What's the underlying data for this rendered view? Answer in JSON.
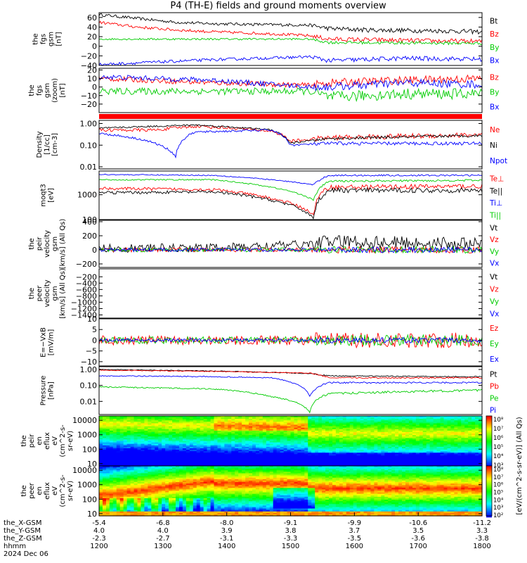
{
  "title": "P4 (TH-E) fields and ground moments overview",
  "x_axis": {
    "rows": [
      {
        "name": "the_X-GSM",
        "values": [
          "-5.4",
          "-6.8",
          "-8.0",
          "-9.1",
          "-9.9",
          "-10.6",
          "-11.2"
        ]
      },
      {
        "name": "the_Y-GSM",
        "values": [
          "4.0",
          "4.0",
          "3.9",
          "3.8",
          "3.7",
          "3.5",
          "3.3"
        ]
      },
      {
        "name": "the_Z-GSM",
        "values": [
          "-2.3",
          "-2.7",
          "-3.1",
          "-3.3",
          "-3.5",
          "-3.6",
          "-3.8"
        ]
      },
      {
        "name": "hhmm",
        "values": [
          "1200",
          "1300",
          "1400",
          "1500",
          "1600",
          "1700",
          "1800"
        ]
      }
    ],
    "date": "2024 Dec 06"
  },
  "colors": {
    "black": "#000000",
    "red": "#ff0000",
    "green": "#00cc00",
    "blue": "#0000ff"
  },
  "chart_data": [
    {
      "type": "line",
      "ylabel": [
        "the",
        "fgs",
        "gsm",
        "[nT]"
      ],
      "ylim": [
        -40,
        70
      ],
      "yscale": "linear",
      "ticks": [
        {
          "v": 60,
          "t": "60"
        },
        {
          "v": 40,
          "t": "40"
        },
        {
          "v": 20,
          "t": "20"
        },
        {
          "v": 0,
          "t": "0"
        },
        {
          "v": -20,
          "t": "−20"
        },
        {
          "v": -40,
          "t": "−40"
        }
      ],
      "series": [
        {
          "name": "Bt",
          "color": "#000000",
          "pts": [
            [
              0,
              66
            ],
            [
              0.1,
              58
            ],
            [
              0.2,
              50
            ],
            [
              0.3,
              47
            ],
            [
              0.45,
              45
            ],
            [
              0.55,
              44
            ],
            [
              0.6,
              37
            ],
            [
              0.7,
              34
            ],
            [
              0.8,
              33
            ],
            [
              0.9,
              32
            ],
            [
              1,
              30
            ]
          ],
          "noise": 3
        },
        {
          "name": "Bz",
          "color": "#ff0000",
          "pts": [
            [
              0,
              50
            ],
            [
              0.1,
              40
            ],
            [
              0.2,
              34
            ],
            [
              0.3,
              30
            ],
            [
              0.45,
              26
            ],
            [
              0.55,
              22
            ],
            [
              0.6,
              15
            ],
            [
              0.8,
              12
            ],
            [
              1,
              10
            ]
          ],
          "noise": 3
        },
        {
          "name": "By",
          "color": "#00cc00",
          "pts": [
            [
              0,
              15
            ],
            [
              0.3,
              15
            ],
            [
              0.55,
              15
            ],
            [
              0.6,
              8
            ],
            [
              1,
              6
            ]
          ],
          "noise": 2
        },
        {
          "name": "Bx",
          "color": "#0000ff",
          "pts": [
            [
              0,
              -38
            ],
            [
              0.3,
              -28
            ],
            [
              0.55,
              -22
            ],
            [
              0.6,
              -30
            ],
            [
              0.8,
              -25
            ],
            [
              1,
              -27
            ]
          ],
          "noise": 3
        }
      ]
    },
    {
      "type": "line",
      "ylabel": [
        "the",
        "fgs",
        "gsm",
        "(zoom)",
        "[nT]"
      ],
      "ylim": [
        -30,
        22
      ],
      "yscale": "linear",
      "ticks": [
        {
          "v": 20,
          "t": "20"
        },
        {
          "v": 10,
          "t": "10"
        },
        {
          "v": 0,
          "t": "0"
        },
        {
          "v": -10,
          "t": "−10"
        },
        {
          "v": -20,
          "t": "−20"
        }
      ],
      "series": [
        {
          "name": "Bz",
          "color": "#ff0000",
          "pts": [
            [
              0,
              10
            ],
            [
              0.3,
              5
            ],
            [
              0.55,
              2
            ],
            [
              0.6,
              5
            ],
            [
              0.8,
              8
            ],
            [
              1,
              10
            ]
          ],
          "noise": 3
        },
        {
          "name": "By",
          "color": "#00cc00",
          "pts": [
            [
              0,
              -5
            ],
            [
              0.3,
              -5
            ],
            [
              0.55,
              -5
            ],
            [
              0.6,
              -12
            ],
            [
              0.8,
              -8
            ],
            [
              1,
              -8
            ]
          ],
          "noise": 4
        },
        {
          "name": "Bx",
          "color": "#0000ff",
          "pts": [
            [
              0,
              12
            ],
            [
              0.3,
              8
            ],
            [
              0.55,
              0
            ],
            [
              0.6,
              0
            ],
            [
              0.8,
              5
            ],
            [
              1,
              3
            ]
          ],
          "noise": 3
        }
      ]
    },
    {
      "type": "quality-bar",
      "series": [
        {
          "name": "flag",
          "color": "#ff0000"
        }
      ]
    },
    {
      "type": "line",
      "ylabel": [
        "Density",
        "[1/cc]",
        "[cm-3]"
      ],
      "ylim": [
        0.008,
        1.4
      ],
      "yscale": "log",
      "ticks": [
        {
          "v": 1,
          "t": "1.00"
        },
        {
          "v": 0.1,
          "t": "0.10"
        },
        {
          "v": 0.01,
          "t": "0.01"
        }
      ],
      "series": [
        {
          "name": "Ne",
          "color": "#ff0000",
          "pts": [
            [
              0,
              0.5
            ],
            [
              0.15,
              0.5
            ],
            [
              0.25,
              0.75
            ],
            [
              0.45,
              0.45
            ],
            [
              0.5,
              0.15
            ],
            [
              0.6,
              0.22
            ],
            [
              1,
              0.3
            ]
          ],
          "noise": 0.15,
          "log": true
        },
        {
          "name": "Ni",
          "color": "#000000",
          "pts": [
            [
              0,
              0.6
            ],
            [
              0.25,
              0.85
            ],
            [
              0.45,
              0.5
            ],
            [
              0.5,
              0.12
            ],
            [
              0.6,
              0.2
            ],
            [
              1,
              0.28
            ]
          ],
          "noise": 0.08,
          "log": true
        },
        {
          "name": "Npot",
          "color": "#0000ff",
          "pts": [
            [
              0,
              0.35
            ],
            [
              0.1,
              0.2
            ],
            [
              0.2,
              0.03
            ],
            [
              0.25,
              0.4
            ],
            [
              0.45,
              0.5
            ],
            [
              0.5,
              0.1
            ],
            [
              0.6,
              0.12
            ],
            [
              1,
              0.12
            ]
          ],
          "noise": 0.1,
          "log": true
        }
      ]
    },
    {
      "type": "line",
      "ylabel": [
        "moqt3",
        "[eV]"
      ],
      "ylim": [
        100,
        9000
      ],
      "yscale": "log",
      "ticks": [
        {
          "v": 1000,
          "t": "1000"
        },
        {
          "v": 100,
          "t": "100"
        }
      ],
      "series": [
        {
          "name": "Te⊥",
          "color": "#ff0000",
          "pts": [
            [
              0,
              1800
            ],
            [
              0.3,
              1600
            ],
            [
              0.45,
              700
            ],
            [
              0.56,
              150
            ],
            [
              0.6,
              2000
            ],
            [
              1,
              2200
            ]
          ],
          "noise": 0.12,
          "log": true
        },
        {
          "name": "Te||",
          "color": "#000000",
          "pts": [
            [
              0,
              1200
            ],
            [
              0.3,
              1300
            ],
            [
              0.45,
              600
            ],
            [
              0.56,
              110
            ],
            [
              0.6,
              1500
            ],
            [
              1,
              1500
            ]
          ],
          "noise": 0.12,
          "log": true
        },
        {
          "name": "Ti⊥",
          "color": "#0000ff",
          "pts": [
            [
              0,
              6500
            ],
            [
              0.3,
              6000
            ],
            [
              0.45,
              4000
            ],
            [
              0.56,
              2500
            ],
            [
              0.6,
              6000
            ],
            [
              1,
              6000
            ]
          ],
          "noise": 0.04,
          "log": true
        },
        {
          "name": "Ti||",
          "color": "#00cc00",
          "pts": [
            [
              0,
              4000
            ],
            [
              0.3,
              4000
            ],
            [
              0.45,
              2000
            ],
            [
              0.56,
              600
            ],
            [
              0.6,
              3500
            ],
            [
              1,
              3800
            ]
          ],
          "noise": 0.05,
          "log": true
        }
      ]
    },
    {
      "type": "line",
      "ylabel": [
        "the",
        "peir",
        "velocity",
        "gsm",
        "[km/s] (All Qs)"
      ],
      "ylim": [
        -250,
        420
      ],
      "yscale": "linear",
      "ticks": [
        {
          "v": 400,
          "t": "400"
        },
        {
          "v": 200,
          "t": "200"
        },
        {
          "v": 0,
          "t": "0"
        },
        {
          "v": -200,
          "t": "−200"
        }
      ],
      "series": [
        {
          "name": "Vt",
          "color": "#000000",
          "pts": [
            [
              0,
              20
            ],
            [
              0.3,
              30
            ],
            [
              0.55,
              80
            ],
            [
              0.6,
              120
            ],
            [
              1,
              80
            ]
          ],
          "noise": 60
        },
        {
          "name": "Vz",
          "color": "#ff0000",
          "pts": [
            [
              0,
              0
            ],
            [
              1,
              0
            ]
          ],
          "noise": 30
        },
        {
          "name": "Vy",
          "color": "#00cc00",
          "pts": [
            [
              0,
              0
            ],
            [
              1,
              0
            ]
          ],
          "noise": 30
        },
        {
          "name": "Vx",
          "color": "#0000ff",
          "pts": [
            [
              0,
              0
            ],
            [
              1,
              0
            ]
          ],
          "noise": 25
        }
      ]
    },
    {
      "type": "line",
      "ylabel": [
        "the",
        "peer",
        "velocity",
        "gsm",
        "[km/s] (All Qs)"
      ],
      "ylim": [
        -1500,
        50
      ],
      "yscale": "linear",
      "ticks": [
        {
          "v": -200,
          "t": "−200"
        },
        {
          "v": -400,
          "t": "−400"
        },
        {
          "v": -600,
          "t": "−600"
        },
        {
          "v": -800,
          "t": "−800"
        },
        {
          "v": -1000,
          "t": "−1000"
        },
        {
          "v": -1200,
          "t": "−1200"
        },
        {
          "v": -1400,
          "t": "−1400"
        }
      ],
      "series": [
        {
          "name": "Vt",
          "color": "#000000",
          "pts": [],
          "noise": 0
        },
        {
          "name": "Vz",
          "color": "#ff0000",
          "pts": [],
          "noise": 0
        },
        {
          "name": "Vy",
          "color": "#00cc00",
          "pts": [],
          "noise": 0
        },
        {
          "name": "Vx",
          "color": "#0000ff",
          "pts": [],
          "noise": 0
        }
      ]
    },
    {
      "type": "line",
      "ylabel": [
        "E=−VxB",
        "[mV/m]"
      ],
      "ylim": [
        -12,
        10
      ],
      "yscale": "linear",
      "ticks": [
        {
          "v": 10,
          "t": "10"
        },
        {
          "v": 5,
          "t": "5"
        },
        {
          "v": 0,
          "t": "0"
        },
        {
          "v": -5,
          "t": "−5"
        },
        {
          "v": -10,
          "t": "−10"
        }
      ],
      "series": [
        {
          "name": "Ez",
          "color": "#ff0000",
          "pts": [
            [
              0,
              0
            ],
            [
              1,
              0
            ]
          ],
          "noise": 2.2
        },
        {
          "name": "Ey",
          "color": "#00cc00",
          "pts": [
            [
              0,
              0
            ],
            [
              1,
              0
            ]
          ],
          "noise": 1.6
        },
        {
          "name": "Ex",
          "color": "#0000ff",
          "pts": [
            [
              0,
              0
            ],
            [
              1,
              0
            ]
          ],
          "noise": 0.8
        }
      ]
    },
    {
      "type": "line",
      "ylabel": [
        "Pressure",
        "[nPa]"
      ],
      "ylim": [
        0.0015,
        1.5
      ],
      "yscale": "log",
      "ticks": [
        {
          "v": 1,
          "t": "1.00"
        },
        {
          "v": 0.1,
          "t": "0.10"
        },
        {
          "v": 0.01,
          "t": "0.01"
        }
      ],
      "series": [
        {
          "name": "Pt",
          "color": "#000000",
          "pts": [
            [
              0,
              1.0
            ],
            [
              0.3,
              0.8
            ],
            [
              0.55,
              0.55
            ],
            [
              0.6,
              0.4
            ],
            [
              1,
              0.35
            ]
          ],
          "noise": 0.04,
          "log": true
        },
        {
          "name": "Pb",
          "color": "#ff0000",
          "pts": [
            [
              0,
              0.9
            ],
            [
              0.3,
              0.75
            ],
            [
              0.55,
              0.6
            ],
            [
              0.6,
              0.3
            ],
            [
              1,
              0.3
            ]
          ],
          "noise": 0.05,
          "log": true
        },
        {
          "name": "Pe",
          "color": "#00cc00",
          "pts": [
            [
              0,
              0.08
            ],
            [
              0.3,
              0.06
            ],
            [
              0.45,
              0.02
            ],
            [
              0.55,
              0.002
            ],
            [
              0.6,
              0.03
            ],
            [
              1,
              0.05
            ]
          ],
          "noise": 0.08,
          "log": true
        },
        {
          "name": "Pi",
          "color": "#0000ff",
          "pts": [
            [
              0,
              0.4
            ],
            [
              0.3,
              0.35
            ],
            [
              0.45,
              0.3
            ],
            [
              0.55,
              0.02
            ],
            [
              0.6,
              0.15
            ],
            [
              1,
              0.15
            ]
          ],
          "noise": 0.06,
          "log": true
        }
      ]
    },
    {
      "type": "heatmap",
      "ylabel": [
        "the",
        "peir",
        "en",
        "eflux",
        "eV",
        "(cm^2-s-",
        "sr-eV)"
      ],
      "ylim": [
        7,
        20000
      ],
      "yscale": "log",
      "ticks": [
        {
          "v": 10000,
          "t": "10000"
        },
        {
          "v": 1000,
          "t": "1000"
        },
        {
          "v": 100,
          "t": "100"
        },
        {
          "v": 10,
          "t": "10"
        }
      ],
      "mode": "ion"
    },
    {
      "type": "heatmap",
      "ylabel": [
        "the",
        "peer",
        "en",
        "eflux",
        "eV",
        "(cm^2-s-",
        "sr-eV)"
      ],
      "ylim": [
        7,
        20000
      ],
      "yscale": "log",
      "ticks": [
        {
          "v": 10000,
          "t": "10000"
        },
        {
          "v": 1000,
          "t": "1000"
        },
        {
          "v": 100,
          "t": "100"
        },
        {
          "v": 10,
          "t": "10"
        }
      ],
      "mode": "electron"
    }
  ],
  "colorbar": {
    "label": "[eV/(cm^2-s-sr-eV)] (All Qs)",
    "top_ticks": [
      "10⁸",
      "10⁷",
      "10⁶",
      "10⁵",
      "10⁴",
      "10³"
    ],
    "bottom_ticks": [
      "10⁸",
      "10⁷",
      "10⁶",
      "10⁵",
      "10⁴",
      "10³",
      "10²"
    ]
  }
}
